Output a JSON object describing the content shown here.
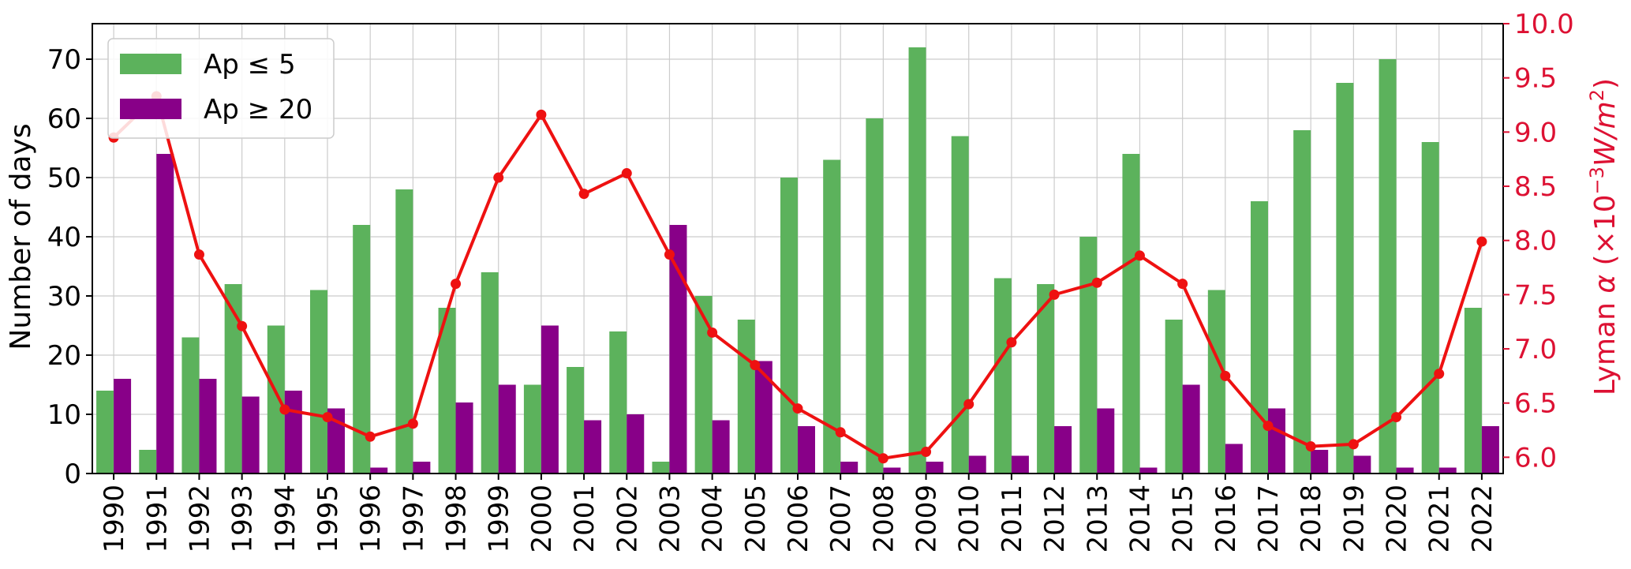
{
  "chart_data": {
    "type": "bar",
    "categories": [
      "1990",
      "1991",
      "1992",
      "1993",
      "1994",
      "1995",
      "1996",
      "1997",
      "1998",
      "1999",
      "2000",
      "2001",
      "2002",
      "2003",
      "2004",
      "2005",
      "2006",
      "2007",
      "2008",
      "2009",
      "2010",
      "2011",
      "2012",
      "2013",
      "2014",
      "2015",
      "2016",
      "2017",
      "2018",
      "2019",
      "2020",
      "2021",
      "2022"
    ],
    "series": [
      {
        "name": "Ap ≤ 5",
        "color": "#5cb25c",
        "axis": "left",
        "kind": "bar",
        "values": [
          14,
          4,
          23,
          32,
          25,
          31,
          42,
          48,
          28,
          34,
          15,
          18,
          24,
          2,
          30,
          26,
          50,
          53,
          60,
          72,
          57,
          33,
          32,
          40,
          54,
          26,
          31,
          46,
          58,
          66,
          70,
          56,
          28
        ]
      },
      {
        "name": "Ap ≥ 20",
        "color": "#880088",
        "axis": "left",
        "kind": "bar",
        "values": [
          16,
          54,
          16,
          13,
          14,
          11,
          1,
          2,
          12,
          15,
          25,
          9,
          10,
          42,
          9,
          19,
          8,
          2,
          1,
          2,
          3,
          3,
          8,
          11,
          1,
          15,
          5,
          11,
          4,
          3,
          1,
          1,
          8
        ]
      },
      {
        "axis": "right",
        "kind": "line",
        "color": "#ee1111",
        "values": [
          8.95,
          9.33,
          7.87,
          7.21,
          6.44,
          6.37,
          6.19,
          6.31,
          7.6,
          8.58,
          9.16,
          8.43,
          8.62,
          7.87,
          7.15,
          6.85,
          6.45,
          6.23,
          5.99,
          6.05,
          6.49,
          7.06,
          7.5,
          7.61,
          7.86,
          7.6,
          6.75,
          6.29,
          6.1,
          6.12,
          6.37,
          6.77,
          7.99
        ]
      }
    ],
    "ylabel": "Number of days",
    "ylim": [
      0,
      76
    ],
    "yticks": [
      "0",
      "10",
      "20",
      "30",
      "40",
      "50",
      "60",
      "70"
    ],
    "y2label_text": "Lyman ",
    "y2label_symbol": "α",
    "y2label_unit_open": " (×10",
    "y2label_exp": "−3",
    "y2label_unit_mid": "W/m",
    "y2label_exp2": "2",
    "y2label_close": ")",
    "y2lim": [
      5.85,
      10.0
    ],
    "y2ticks": [
      "6.0",
      "6.5",
      "7.0",
      "7.5",
      "8.0",
      "8.5",
      "9.0",
      "9.5",
      "10.0"
    ],
    "y2color": "#dd1133",
    "grid": true,
    "legend_placement": "top-left"
  }
}
